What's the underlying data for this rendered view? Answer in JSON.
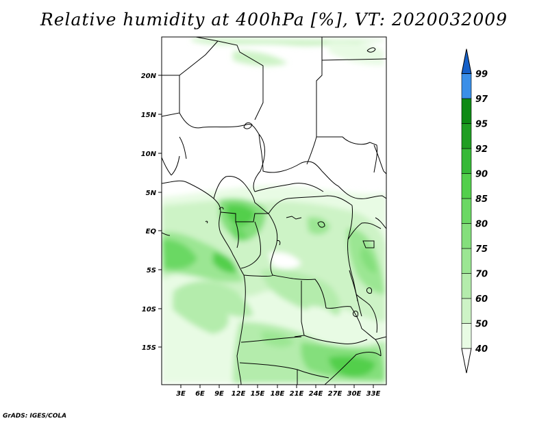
{
  "title": "Relative humidity at 400hPa [%], VT: 2020032009",
  "credit": "GrADS: IGES/COLA",
  "map": {
    "lat_labels": [
      "20N",
      "15N",
      "10N",
      "5N",
      "EQ",
      "5S",
      "10S",
      "15S"
    ],
    "lon_labels": [
      "3E",
      "6E",
      "9E",
      "12E",
      "15E",
      "18E",
      "21E",
      "24E",
      "27E",
      "30E",
      "33E"
    ],
    "lat_range": [
      -19.5,
      24.5
    ],
    "lon_range": [
      0,
      35
    ]
  },
  "colorbar": {
    "levels": [
      "40",
      "50",
      "60",
      "70",
      "75",
      "80",
      "85",
      "90",
      "92",
      "95",
      "97",
      "99"
    ],
    "colors": [
      "#e8fbe4",
      "#cdf3c6",
      "#b4ecac",
      "#9be693",
      "#84df7c",
      "#6bd864",
      "#53cf4c",
      "#36b937",
      "#1f9e22",
      "#0e8a14",
      "#3a8fe8",
      "#1f6fd6",
      "#1560c8"
    ]
  }
}
